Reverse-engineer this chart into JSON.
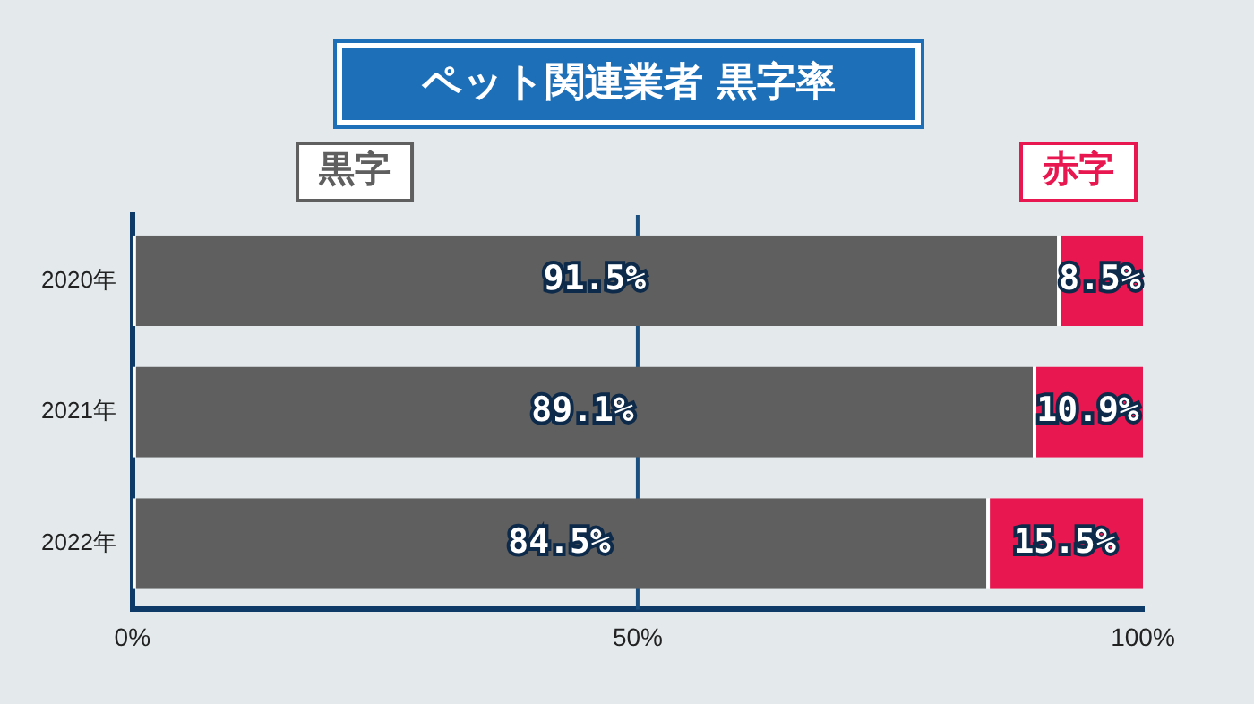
{
  "chart_data": {
    "type": "bar",
    "orientation": "horizontal",
    "stacked": true,
    "title": "ペット関連業者 黒字率",
    "categories": [
      "2020年",
      "2021年",
      "2022年"
    ],
    "series": [
      {
        "name": "黒字",
        "color": "#5f5f5f",
        "values": [
          91.5,
          89.1,
          84.5
        ],
        "value_labels": [
          "91.5%",
          "89.1%",
          "84.5%"
        ]
      },
      {
        "name": "赤字",
        "color": "#e8174f",
        "values": [
          8.5,
          10.9,
          15.5
        ],
        "value_labels": [
          "8.5%",
          "10.9%",
          "15.5%"
        ]
      }
    ],
    "xlim": [
      0,
      100
    ],
    "xticks": [
      {
        "value": 0,
        "label": "0%"
      },
      {
        "value": 50,
        "label": "50%"
      },
      {
        "value": 100,
        "label": "100%"
      }
    ],
    "ref_lines": [
      {
        "axis": "x",
        "value": 50
      }
    ],
    "legend": "top"
  }
}
